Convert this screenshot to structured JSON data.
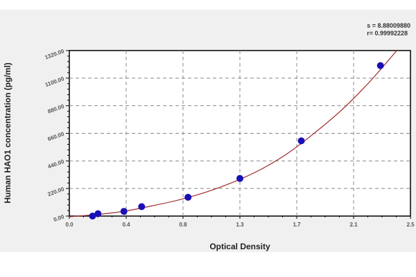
{
  "chart_data": {
    "type": "scatter",
    "title": "",
    "xlabel": "Optical Density",
    "ylabel": "Human HAO1 concentration (pg/ml)",
    "xlim": [
      0,
      2.5
    ],
    "ylim": [
      0,
      1320
    ],
    "x_ticks": [
      "0.0",
      "0.4",
      "0.8",
      "1.3",
      "1.7",
      "2.1",
      "2.5"
    ],
    "y_ticks": [
      "0.00",
      "220.00",
      "440.00",
      "660.00",
      "880.00",
      "1100.00",
      "1320.00"
    ],
    "grid": true,
    "stats": {
      "s": "s = 8.88009880",
      "r": "r= 0.99992228"
    },
    "points": [
      {
        "x": 0.17,
        "y": 0
      },
      {
        "x": 0.21,
        "y": 18.75
      },
      {
        "x": 0.4,
        "y": 37.5
      },
      {
        "x": 0.53,
        "y": 75
      },
      {
        "x": 0.87,
        "y": 150
      },
      {
        "x": 1.25,
        "y": 300
      },
      {
        "x": 1.7,
        "y": 600
      },
      {
        "x": 2.28,
        "y": 1200
      }
    ],
    "fit_curve": [
      [
        0.0,
        -5
      ],
      [
        0.2,
        12
      ],
      [
        0.4,
        38
      ],
      [
        0.6,
        80
      ],
      [
        0.8,
        128
      ],
      [
        1.0,
        190
      ],
      [
        1.2,
        270
      ],
      [
        1.4,
        370
      ],
      [
        1.6,
        500
      ],
      [
        1.8,
        665
      ],
      [
        2.0,
        850
      ],
      [
        2.2,
        1070
      ],
      [
        2.4,
        1320
      ]
    ],
    "colors": {
      "points": "#1a0fb5",
      "curve": "#a0282a",
      "grid": "#888888"
    }
  }
}
